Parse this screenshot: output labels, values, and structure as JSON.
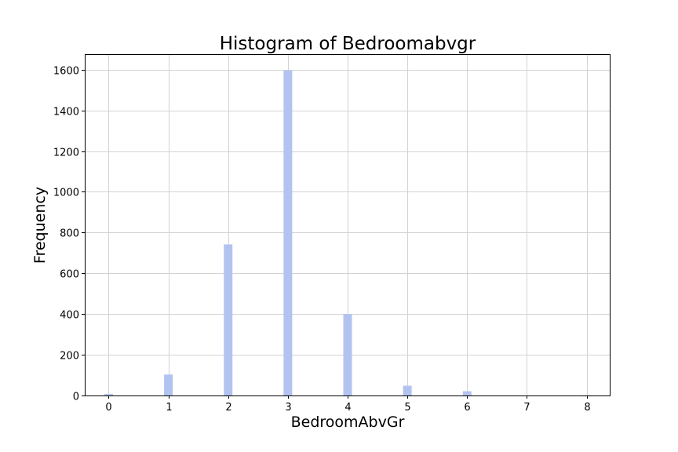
{
  "chart_data": {
    "type": "bar",
    "title": "Histogram of Bedroomabvgr",
    "xlabel": "BedroomAbvGr",
    "ylabel": "Frequency",
    "x": [
      0,
      1,
      2,
      3,
      4,
      5,
      6,
      8
    ],
    "values": [
      8,
      103,
      742,
      1596,
      400,
      48,
      21,
      1
    ],
    "xlim": [
      -0.4,
      8.4
    ],
    "ylim": [
      0,
      1676
    ],
    "xticks": [
      0,
      1,
      2,
      3,
      4,
      5,
      6,
      7,
      8
    ],
    "yticks": [
      0,
      200,
      400,
      600,
      800,
      1000,
      1200,
      1400,
      1600
    ],
    "grid": true,
    "colors": {
      "bar": "#b3c3f0"
    }
  }
}
